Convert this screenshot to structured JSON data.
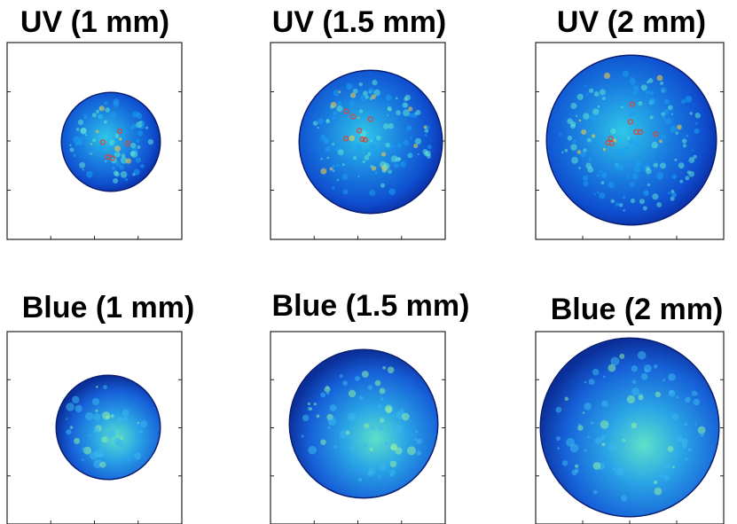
{
  "panels": [
    {
      "title": "UV (1 mm)"
    },
    {
      "title": "UV (1.5 mm)"
    },
    {
      "title": "UV (2 mm)"
    },
    {
      "title": "Blue (1 mm)"
    },
    {
      "title": "Blue (1.5 mm)"
    },
    {
      "title": "Blue (2 mm)"
    }
  ]
}
